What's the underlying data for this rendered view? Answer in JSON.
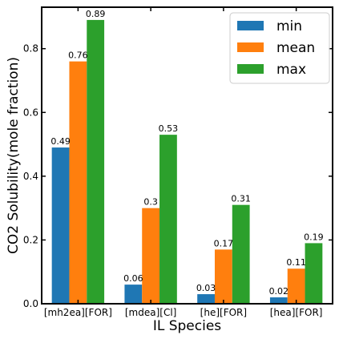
{
  "chart_data": {
    "type": "bar",
    "categories": [
      "[mh2ea][FOR]",
      "[mdea][Cl]",
      "[he][FOR]",
      "[hea][FOR]"
    ],
    "series": [
      {
        "name": "min",
        "color": "#1f77b4",
        "values": [
          0.49,
          0.06,
          0.03,
          0.02
        ],
        "labels": [
          "0.49",
          "0.06",
          "0.03",
          "0.02"
        ]
      },
      {
        "name": "mean",
        "color": "#ff7f0e",
        "values": [
          0.76,
          0.3,
          0.17,
          0.11
        ],
        "labels": [
          "0.76",
          "0.3",
          "0.17",
          "0.11"
        ]
      },
      {
        "name": "max",
        "color": "#2ca02c",
        "values": [
          0.89,
          0.53,
          0.31,
          0.19
        ],
        "labels": [
          "0.89",
          "0.53",
          "0.31",
          "0.19"
        ]
      }
    ],
    "xlabel": "IL Species",
    "ylabel": "CO2 Solubility(mole fraction)",
    "ylim": [
      0,
      0.93
    ],
    "yticks": [
      0.0,
      0.2,
      0.4,
      0.6,
      0.8
    ],
    "ytick_labels": [
      "0.0",
      "0.2",
      "0.4",
      "0.6",
      "0.8"
    ],
    "grid": false,
    "legend_position": "top-right"
  }
}
